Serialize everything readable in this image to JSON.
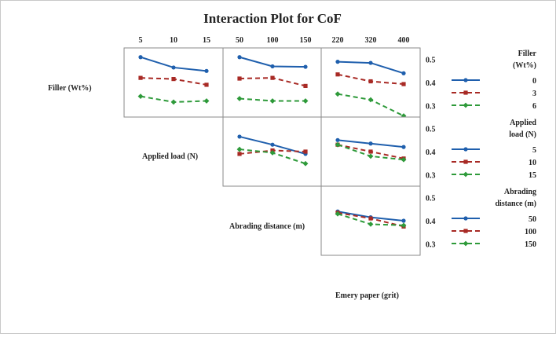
{
  "chart_data": {
    "type": "line",
    "title": "Interaction Plot for CoF",
    "factors": [
      {
        "name": "Filler (Wt%)",
        "levels": [
          "5",
          "10",
          "15"
        ],
        "legend_title": "Filler\n(Wt%)",
        "legend_levels": [
          "0",
          "3",
          "6"
        ]
      },
      {
        "name": "Applied load (N)",
        "levels": [
          "50",
          "100",
          "150"
        ],
        "legend_title": "Applied\nload (N)",
        "legend_levels": [
          "5",
          "10",
          "15"
        ]
      },
      {
        "name": "Abrading distance (m)",
        "levels": [
          "220",
          "320",
          "400"
        ],
        "legend_title": "Abrading\ndistance (m)",
        "legend_levels": [
          "50",
          "100",
          "150"
        ]
      },
      {
        "name": "Emery paper (grit)"
      }
    ],
    "y_ticks": [
      "0.5",
      "0.4",
      "0.3"
    ],
    "ylim": [
      0.25,
      0.55
    ],
    "series_styles": [
      {
        "color": "#1f5fad",
        "dash": "solid",
        "marker": "circle"
      },
      {
        "color": "#a82a25",
        "dash": "dashed",
        "marker": "square"
      },
      {
        "color": "#2e9a3a",
        "dash": "dashed",
        "marker": "diamond"
      }
    ],
    "panels": [
      {
        "row": 0,
        "col": 0,
        "x_factor": "Filler (Wt%)",
        "trace_factor": "Filler (Wt%)",
        "series": [
          [
            0.51,
            0.465,
            0.45
          ],
          [
            0.42,
            0.415,
            0.39
          ],
          [
            0.34,
            0.315,
            0.32
          ]
        ]
      },
      {
        "row": 0,
        "col": 1,
        "x_factor": "Applied load (N)",
        "trace_factor": "Filler (Wt%)",
        "series": [
          [
            0.51,
            0.47,
            0.468
          ],
          [
            0.417,
            0.42,
            0.385
          ],
          [
            0.33,
            0.32,
            0.32
          ]
        ]
      },
      {
        "row": 0,
        "col": 2,
        "x_factor": "Abrading distance (m)",
        "trace_factor": "Filler (Wt%)",
        "series": [
          [
            0.49,
            0.485,
            0.44
          ],
          [
            0.435,
            0.405,
            0.393
          ],
          [
            0.35,
            0.325,
            0.255
          ]
        ]
      },
      {
        "row": 1,
        "col": 1,
        "x_factor": "Applied load (N)",
        "trace_factor": "Applied load (N)",
        "series": [
          [
            0.465,
            0.43,
            0.39
          ],
          [
            0.39,
            0.405,
            0.4
          ],
          [
            0.41,
            0.395,
            0.348
          ]
        ]
      },
      {
        "row": 1,
        "col": 2,
        "x_factor": "Abrading distance (m)",
        "trace_factor": "Applied load (N)",
        "series": [
          [
            0.45,
            0.435,
            0.42
          ],
          [
            0.43,
            0.4,
            0.37
          ],
          [
            0.43,
            0.38,
            0.365
          ]
        ]
      },
      {
        "row": 2,
        "col": 2,
        "x_factor": "Abrading distance (m)",
        "trace_factor": "Abrading distance (m)",
        "series": [
          [
            0.44,
            0.415,
            0.4
          ],
          [
            0.435,
            0.41,
            0.375
          ],
          [
            0.43,
            0.385,
            0.38
          ]
        ]
      }
    ]
  }
}
